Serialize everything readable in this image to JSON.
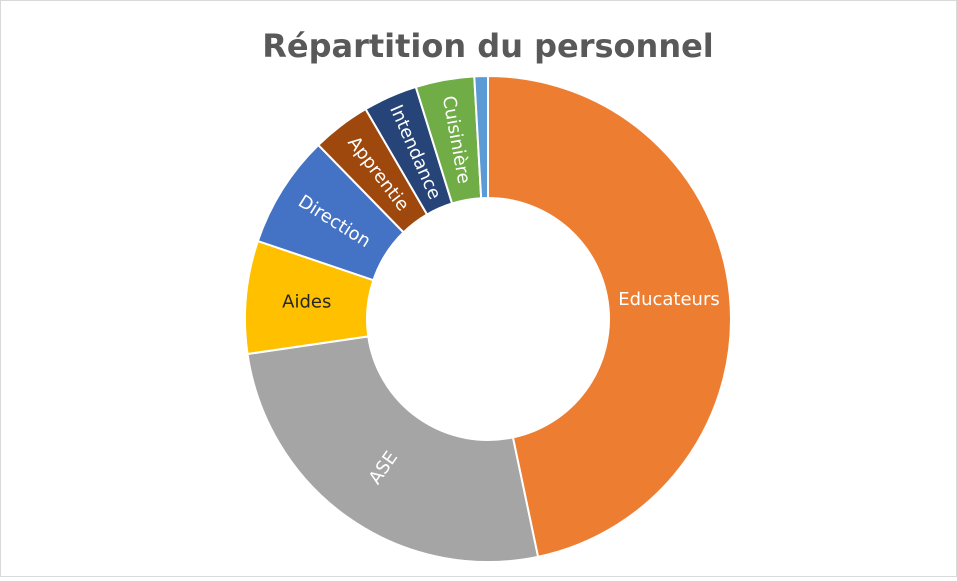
{
  "chart_data": {
    "type": "donut",
    "title": "Répartition du personnel",
    "categories": [
      "Educateurs",
      "ASE",
      "Aides",
      "Direction",
      "Apprentie",
      "Intendance",
      "Cuisinière",
      null
    ],
    "values": [
      46.7,
      26,
      7.5,
      7.5,
      3.9,
      3.6,
      3.9,
      0.9
    ],
    "colors": [
      "#ed7d31",
      "#a5a5a5",
      "#ffc000",
      "#4472c4",
      "#9e480e",
      "#264478",
      "#70ad47",
      "#5b9bd5"
    ]
  }
}
